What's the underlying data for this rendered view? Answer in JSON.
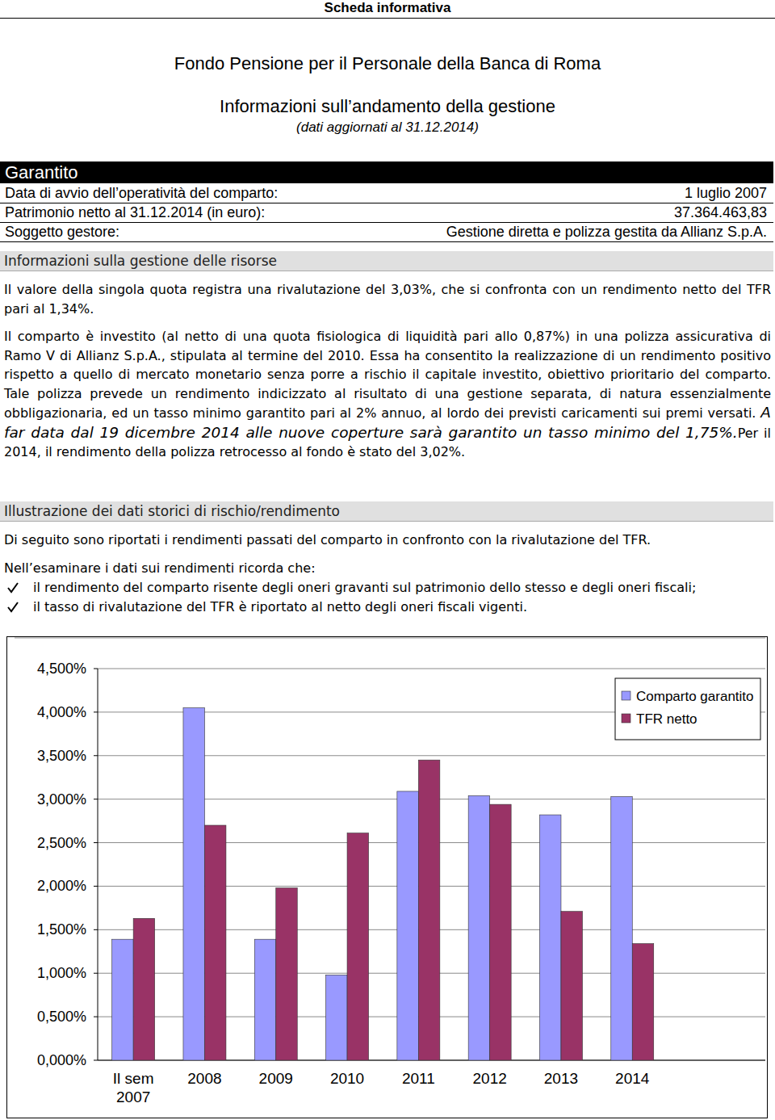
{
  "document": {
    "header": "Scheda informativa",
    "title": "Fondo Pensione per il Personale della Banca di Roma",
    "subtitle": "Informazioni sull’andamento della gestione",
    "date": "(dati aggiornati al 31.12.2014)",
    "section": "Garantito",
    "info_rows": [
      [
        "Data di avvio dell’operatività del comparto:",
        "1 luglio 2007"
      ],
      [
        "Patrimonio netto al 31.12.2014 (in euro):",
        "37.364.463,83"
      ],
      [
        "Soggetto gestore:",
        "Gestione diretta e polizza gestita da Allianz S.p.A."
      ]
    ],
    "heading1": "Informazioni sulla gestione delle risorse",
    "paragraph1": "Il valore della singola quota registra una rivalutazione del 3,03%, che si confronta con un rendimento netto del TFR pari al 1,34%.",
    "paragraph2": [
      {
        "text": "Il comparto è investito (al netto di una quota fisiologica di liquidità pari allo 0,87%) in una polizza assicurativa di Ramo V di Allianz S.p.A., stipulata al termine del 2010. Essa ha consentito la realizzazione di un rendimento positivo rispetto a quello di mercato monetario senza porre a rischio il capitale investito, obiettivo prioritario del comparto. Tale polizza prevede un rendimento indicizzato al risultato di una gestione separata, di natura essenzialmente obbligazionaria, ed un tasso minimo garantito pari al 2% annuo, al lordo dei previsti caricamenti sui premi versati. "
      },
      {
        "text": "A far data dal 19 dicembre 2014 alle nuove coperture sarà garantito un tasso minimo del 1,75%.",
        "italic": true
      },
      {
        "text": "Per il 2014, il rendimento della polizza retrocesso al fondo è stato del 3,02%."
      }
    ],
    "heading2": "Illustrazione dei dati storici di rischio/rendimento",
    "paragraph3": "Di seguito sono riportati i rendimenti passati del comparto in confronto con la rivalutazione del TFR.",
    "paragraph4": "Nell’esaminare i dati sui rendimenti ricorda che:",
    "bullets": [
      "il rendimento del comparto risente degli oneri gravanti sul patrimonio dello stesso e degli oneri fiscali;",
      "il tasso di rivalutazione del TFR è riportato al netto degli oneri fiscali vigenti."
    ]
  },
  "chart_data": {
    "type": "bar",
    "categories": [
      "Il sem 2007",
      "2008",
      "2009",
      "2010",
      "2011",
      "2012",
      "2013",
      "2014"
    ],
    "series": [
      {
        "name": "Comparto garantito",
        "color": "#9999ff",
        "values": [
          1.39,
          4.05,
          1.39,
          0.98,
          3.09,
          3.04,
          2.82,
          3.03
        ]
      },
      {
        "name": "TFR netto",
        "color": "#993366",
        "values": [
          1.63,
          2.7,
          1.98,
          2.61,
          3.45,
          2.94,
          1.71,
          1.34
        ]
      }
    ],
    "ylim": [
      0,
      4.5
    ],
    "yticks": [
      {
        "value": 0,
        "label": "0,000%"
      },
      {
        "value": 0.5,
        "label": "0,500%"
      },
      {
        "value": 1,
        "label": "1,000%"
      },
      {
        "value": 1.5,
        "label": "1,500%"
      },
      {
        "value": 2,
        "label": "2,000%"
      },
      {
        "value": 2.5,
        "label": "2,500%"
      },
      {
        "value": 3,
        "label": "3,000%"
      },
      {
        "value": 3.5,
        "label": "3,500%"
      },
      {
        "value": 4,
        "label": "4,000%"
      },
      {
        "value": 4.5,
        "label": "4,500%"
      }
    ],
    "grid": true,
    "legend": "right"
  }
}
